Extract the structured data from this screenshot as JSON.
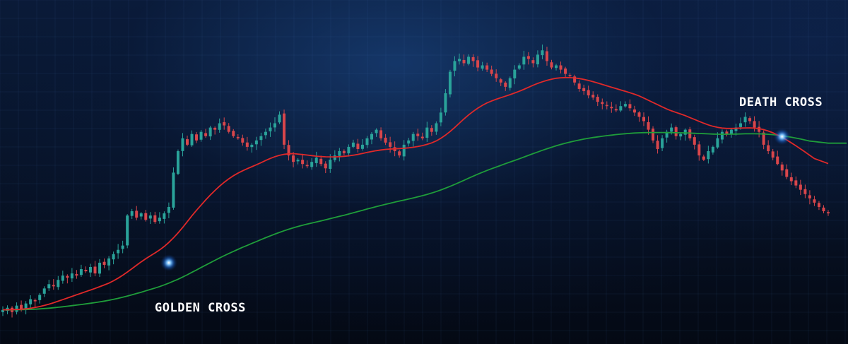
{
  "chart_data": {
    "type": "line",
    "title": "",
    "xlabel": "",
    "ylabel": "",
    "grid": true,
    "legend": "none",
    "annotations": [
      {
        "id": "golden",
        "text": "GOLDEN CROSS"
      },
      {
        "id": "death",
        "text": "DEATH CROSS"
      }
    ],
    "series": [
      {
        "kind": "candlestick",
        "color_up": "#2aa39a",
        "color_down": "#d9464b",
        "closes": [
          12,
          13,
          11,
          14,
          12,
          15,
          17,
          16,
          19,
          22,
          24,
          23,
          26,
          28,
          27,
          29,
          28,
          31,
          30,
          32,
          29,
          34,
          33,
          36,
          38,
          40,
          42,
          56,
          58,
          55,
          57,
          54,
          56,
          53,
          55,
          57,
          60,
          76,
          86,
          92,
          89,
          94,
          91,
          95,
          93,
          97,
          96,
          99,
          98,
          95,
          93,
          92,
          90,
          88,
          89,
          91,
          93,
          95,
          97,
          99,
          103,
          89,
          84,
          81,
          82,
          80,
          79,
          81,
          83,
          80,
          78,
          82,
          84,
          86,
          85,
          88,
          90,
          87,
          89,
          92,
          94,
          96,
          92,
          90,
          88,
          86,
          84,
          89,
          91,
          94,
          93,
          92,
          97,
          95,
          99,
          104,
          113,
          123,
          128,
          129,
          127,
          130,
          128,
          125,
          126,
          124,
          122,
          120,
          118,
          116,
          120,
          124,
          126,
          130,
          129,
          127,
          131,
          133,
          128,
          125,
          126,
          124,
          122,
          121,
          118,
          115,
          114,
          112,
          111,
          109,
          108,
          107,
          106,
          105,
          107,
          108,
          106,
          104,
          102,
          100,
          96,
          91,
          87,
          92,
          95,
          97,
          93,
          94,
          96,
          92,
          89,
          84,
          82,
          86,
          88,
          92,
          95,
          94,
          96,
          97,
          99,
          102,
          100,
          97,
          95,
          89,
          86,
          83,
          80,
          77,
          74,
          72,
          70,
          68,
          66,
          64,
          62,
          60,
          58,
          57
        ]
      },
      {
        "kind": "moving-average",
        "name": "",
        "color": "#e02929"
      },
      {
        "kind": "moving-average",
        "name": "",
        "color": "#1f9d3a"
      }
    ]
  },
  "colors": {
    "up": "#2aa39a",
    "down": "#d9464b",
    "fast_ma": "#e02929",
    "slow_ma": "#1f9d3a",
    "glow": "#3ea0ff"
  }
}
